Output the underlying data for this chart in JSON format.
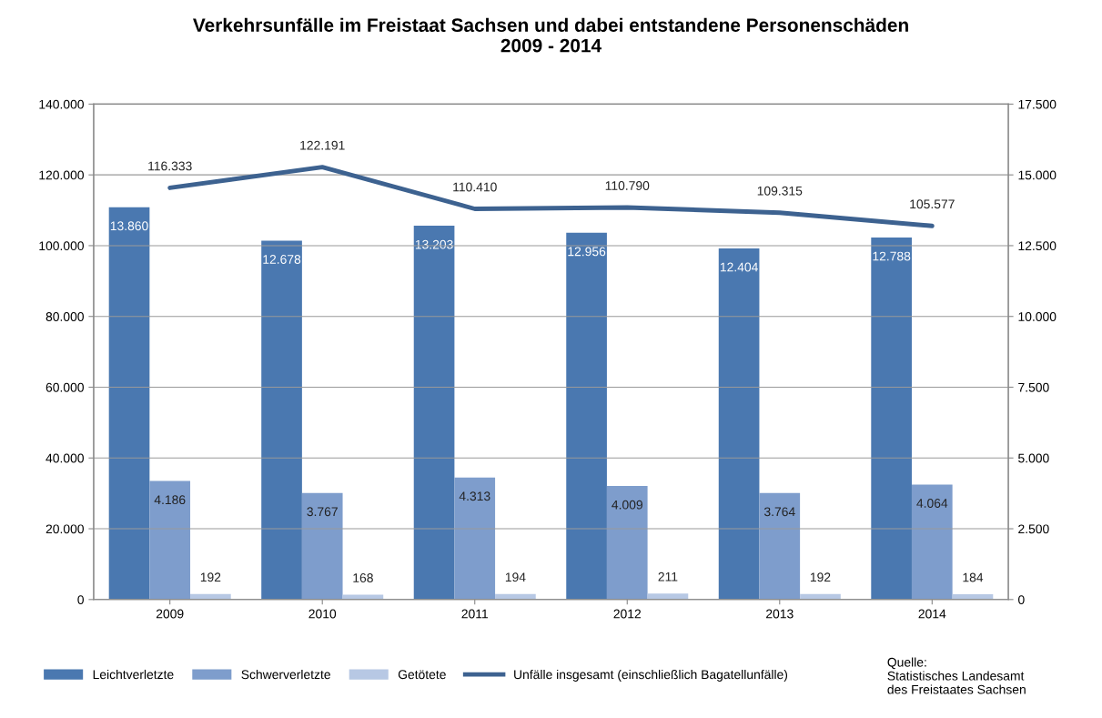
{
  "chart_data": {
    "type": "bar",
    "title": "Verkehrsunfälle im Freistaat Sachsen und dabei entstandene Personenschäden\n2009 - 2014",
    "categories": [
      "2009",
      "2010",
      "2011",
      "2012",
      "2013",
      "2014"
    ],
    "series": [
      {
        "name": "Leichtverletzte",
        "color": "#4a78b0",
        "axis": "y2",
        "values": [
          13860,
          12678,
          13203,
          12956,
          12404,
          12788
        ],
        "value_labels": [
          "13.860",
          "12.678",
          "13.203",
          "12.956",
          "12.404",
          "12.788"
        ]
      },
      {
        "name": "Schwerverletzte",
        "color": "#7e9dcc",
        "axis": "y2",
        "values": [
          4186,
          3767,
          4313,
          4009,
          3764,
          4064
        ],
        "value_labels": [
          "4.186",
          "3.767",
          "4.313",
          "4.009",
          "3.764",
          "4.064"
        ]
      },
      {
        "name": "Getötete",
        "color": "#b7c8e4",
        "axis": "y2",
        "values": [
          192,
          168,
          194,
          211,
          192,
          184
        ],
        "value_labels": [
          "192",
          "168",
          "194",
          "211",
          "192",
          "184"
        ]
      },
      {
        "name": "Unfälle insgesamt (einschließlich Bagatellunfälle)",
        "type": "line",
        "color": "#3d6290",
        "axis": "y",
        "values": [
          116333,
          122191,
          110410,
          110790,
          109315,
          105577
        ],
        "value_labels": [
          "116.333",
          "122.191",
          "110.410",
          "110.790",
          "109.315",
          "105.577"
        ]
      }
    ],
    "ylim": [
      0,
      140000
    ],
    "yticks": [
      {
        "value": 0,
        "label": "0"
      },
      {
        "value": 20000,
        "label": "20.000"
      },
      {
        "value": 40000,
        "label": "40.000"
      },
      {
        "value": 60000,
        "label": "60.000"
      },
      {
        "value": 80000,
        "label": "80.000"
      },
      {
        "value": 100000,
        "label": "100.000"
      },
      {
        "value": 120000,
        "label": "120.000"
      },
      {
        "value": 140000,
        "label": "140.000"
      }
    ],
    "y2lim": [
      0,
      17500
    ],
    "y2ticks": [
      {
        "value": 0,
        "label": "0"
      },
      {
        "value": 2500,
        "label": "2.500"
      },
      {
        "value": 5000,
        "label": "5.000"
      },
      {
        "value": 7500,
        "label": "7.500"
      },
      {
        "value": 10000,
        "label": "10.000"
      },
      {
        "value": 12500,
        "label": "12.500"
      },
      {
        "value": 15000,
        "label": "15.000"
      },
      {
        "value": 17500,
        "label": "17.500"
      }
    ],
    "grid": "y",
    "legend": "bottom",
    "annotations": [
      "Quelle:\nStatistisches Landesamt\ndes Freistaates Sachsen"
    ]
  }
}
